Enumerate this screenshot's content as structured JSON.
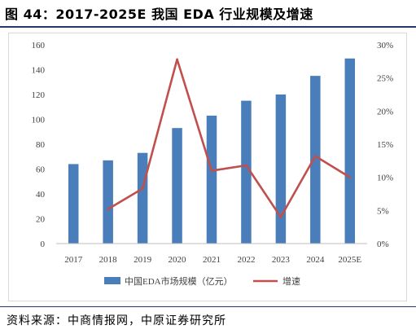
{
  "title": "图 44：2017-2025E 我国 EDA 行业规模及增速",
  "source": "资料来源：中商情报网，中原证券研究所",
  "chart_data": {
    "type": "bar+line",
    "categories": [
      "2017",
      "2018",
      "2019",
      "2020",
      "2021",
      "2022",
      "2023",
      "2024",
      "2025E"
    ],
    "series": [
      {
        "name": "中国EDA市场规模（亿元）",
        "type": "bar",
        "axis": "left",
        "color": "#4a7ebb",
        "values": [
          64,
          67,
          73,
          93,
          103,
          115,
          120,
          135,
          149
        ]
      },
      {
        "name": "增速",
        "type": "line",
        "axis": "right",
        "color": "#c0504d",
        "values": [
          null,
          0.052,
          0.083,
          0.278,
          0.11,
          0.118,
          0.04,
          0.132,
          0.1
        ]
      }
    ],
    "y_left": {
      "lim": [
        0,
        160
      ],
      "ticks": [
        "0",
        "20",
        "40",
        "60",
        "80",
        "100",
        "120",
        "140",
        "160"
      ]
    },
    "y_right": {
      "lim": [
        0,
        0.3
      ],
      "ticks": [
        "0%",
        "5%",
        "10%",
        "15%",
        "20%",
        "25%",
        "30%"
      ]
    },
    "grid": false,
    "legend_position": "bottom"
  }
}
